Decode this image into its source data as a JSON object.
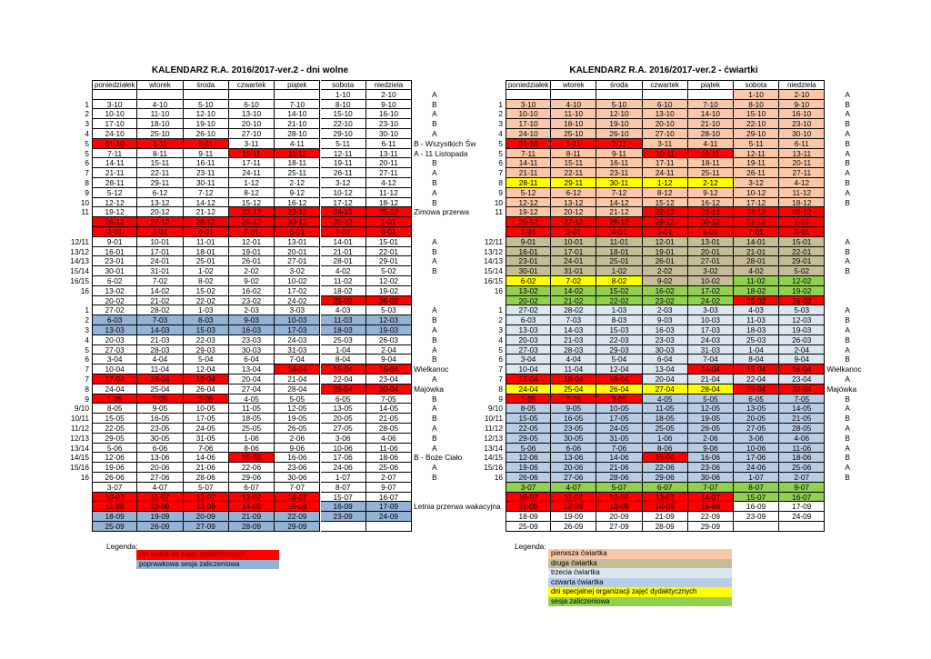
{
  "tables": [
    {
      "title": "KALENDARZ R.A. 2016/2017-ver.2 - dni wolne",
      "header": [
        "poniedziałek",
        "wtorek",
        "środa",
        "czwartek",
        "piątek",
        "sobota",
        "niedziela"
      ],
      "rows": [
        [
          null,
          null,
          null,
          null,
          null,
          null,
          "1-10",
          "2-10",
          "A"
        ],
        [
          "1",
          "3-10",
          "4-10",
          "5-10",
          "6-10",
          "7-10",
          "8-10",
          "9-10",
          "B"
        ],
        [
          "2",
          "10-10",
          "11-10",
          "12-10",
          "13-10",
          "14-10",
          "15-10",
          "16-10",
          "A"
        ],
        [
          "3",
          "17-10",
          "18-10",
          "19-10",
          "20-10",
          "21-10",
          "22-10",
          "23-10",
          "B"
        ],
        [
          "4",
          "24-10",
          "25-10",
          "26-10",
          "27-10",
          "28-10",
          "29-10",
          "30-10",
          "A"
        ],
        [
          "5",
          "31-10",
          "1-11",
          "2-11",
          "3-11",
          "4-11",
          "5-11",
          "6-11",
          "B - Wszystkich Św"
        ],
        [
          "5",
          "7-11",
          "8-11",
          "9-11",
          "10-11",
          "11-11",
          "12-11",
          "13-11",
          "A - 11 Listopada"
        ],
        [
          "6",
          "14-11",
          "15-11",
          "16-11",
          "17-11",
          "18-11",
          "19-11",
          "20-11",
          "B"
        ],
        [
          "7",
          "21-11",
          "22-11",
          "23-11",
          "24-11",
          "25-11",
          "26-11",
          "27-11",
          "A"
        ],
        [
          "8",
          "28-11",
          "29-11",
          "30-11",
          "1-12",
          "2-12",
          "3-12",
          "4-12",
          "B"
        ],
        [
          "9",
          "5-12",
          "6-12",
          "7-12",
          "8-12",
          "9-12",
          "10-12",
          "11-12",
          "A"
        ],
        [
          "10",
          "12-12",
          "13-12",
          "14-12",
          "15-12",
          "16-12",
          "17-12",
          "18-12",
          "B"
        ],
        [
          "11",
          "19-12",
          "20-12",
          "21-12",
          "22-12",
          "23-12",
          "24-12",
          "25-12",
          "Zimowa przerwa"
        ],
        [
          null,
          "26-12",
          "27-12",
          "28-12",
          "29-12",
          "30-12",
          "31-12",
          "1-01",
          null
        ],
        [
          null,
          "2-01",
          "3-01",
          "4-01",
          "5-01",
          "6-01",
          "7-01",
          "8-01",
          null
        ],
        [
          "12/11",
          "9-01",
          "10-01",
          "11-01",
          "12-01",
          "13-01",
          "14-01",
          "15-01",
          "A"
        ],
        [
          "13/12",
          "16-01",
          "17-01",
          "18-01",
          "19-01",
          "20-01",
          "21-01",
          "22-01",
          "B"
        ],
        [
          "14/13",
          "23-01",
          "24-01",
          "25-01",
          "26-01",
          "27-01",
          "28-01",
          "29-01",
          "A"
        ],
        [
          "15/14",
          "30-01",
          "31-01",
          "1-02",
          "2-02",
          "3-02",
          "4-02",
          "5-02",
          "B"
        ],
        [
          "16/15",
          "6-02",
          "7-02",
          "8-02",
          "9-02",
          "10-02",
          "11-02",
          "12-02",
          null
        ],
        [
          "16",
          "13-02",
          "14-02",
          "15-02",
          "16-02",
          "17-02",
          "18-02",
          "19-02",
          null
        ],
        [
          null,
          "20-02",
          "21-02",
          "22-02",
          "23-02",
          "24-02",
          "25-02",
          "26-02",
          null
        ],
        [
          "1",
          "27-02",
          "28-02",
          "1-03",
          "2-03",
          "3-03",
          "4-03",
          "5-03",
          "A"
        ],
        [
          "2",
          "6-03",
          "7-03",
          "8-03",
          "9-03",
          "10-03",
          "11-03",
          "12-03",
          "B"
        ],
        [
          "3",
          "13-03",
          "14-03",
          "15-03",
          "16-03",
          "17-03",
          "18-03",
          "19-03",
          "A"
        ],
        [
          "4",
          "20-03",
          "21-03",
          "22-03",
          "23-03",
          "24-03",
          "25-03",
          "26-03",
          "B"
        ],
        [
          "5",
          "27-03",
          "28-03",
          "29-03",
          "30-03",
          "31-03",
          "1-04",
          "2-04",
          "A"
        ],
        [
          "6",
          "3-04",
          "4-04",
          "5-04",
          "6-04",
          "7-04",
          "8-04",
          "9-04",
          "B"
        ],
        [
          "7",
          "10-04",
          "11-04",
          "12-04",
          "13-04",
          "14-04",
          "15-04",
          "16-04",
          "Wielkanoc"
        ],
        [
          "7",
          "17-04",
          "18-04",
          "19-04",
          "20-04",
          "21-04",
          "22-04",
          "23-04",
          "A"
        ],
        [
          "8",
          "24-04",
          "25-04",
          "26-04",
          "27-04",
          "28-04",
          "29-04",
          "30-04",
          "Majówka"
        ],
        [
          "9",
          "1-05",
          "2-05",
          "3-05",
          "4-05",
          "5-05",
          "6-05",
          "7-05",
          "B"
        ],
        [
          "9/10",
          "8-05",
          "9-05",
          "10-05",
          "11-05",
          "12-05",
          "13-05",
          "14-05",
          "A"
        ],
        [
          "10/11",
          "15-05",
          "16-05",
          "17-05",
          "18-05",
          "19-05",
          "20-05",
          "21-05",
          "B"
        ],
        [
          "11/12",
          "22-05",
          "23-05",
          "24-05",
          "25-05",
          "26-05",
          "27-05",
          "28-05",
          "A"
        ],
        [
          "12/13",
          "29-05",
          "30-05",
          "31-05",
          "1-06",
          "2-06",
          "3-06",
          "4-06",
          "B"
        ],
        [
          "13/14",
          "5-06",
          "6-06",
          "7-06",
          "8-06",
          "9-06",
          "10-06",
          "11-06",
          "A"
        ],
        [
          "14/15",
          "12-06",
          "13-06",
          "14-06",
          "15-06",
          "16-06",
          "17-06",
          "18-06",
          "B - Boże Ciało"
        ],
        [
          "15/16",
          "19-06",
          "20-06",
          "21-06",
          "22-06",
          "23-06",
          "24-06",
          "25-06",
          "A"
        ],
        [
          "16",
          "26-06",
          "27-06",
          "28-06",
          "29-06",
          "30-06",
          "1-07",
          "2-07",
          "B"
        ],
        [
          null,
          "3-07",
          "4-07",
          "5-07",
          "6-07",
          "7-07",
          "8-07",
          "9-07",
          null
        ],
        [
          null,
          "10-07",
          "11-07",
          "12-07",
          "13-07",
          "14-07",
          "15-07",
          "16-07",
          null
        ],
        [
          null,
          "11-09",
          "12-09",
          "13-09",
          "14-09",
          "15-09",
          "16-09",
          "17-09",
          "Letnia przerwa wakacyjna"
        ],
        [
          null,
          "18-09",
          "19-09",
          "20-09",
          "21-09",
          "22-09",
          "23-09",
          "24-09",
          null
        ],
        [
          null,
          "25-09",
          "26-09",
          "27-09",
          "28-09",
          "29-09",
          null,
          null,
          null
        ]
      ],
      "legend_title": "Legenda:",
      "legend": [
        {
          "label": "dni wolne od zajęć dydaktycznych",
          "color": "#ff0000"
        },
        {
          "label": "poprawkowa sesja zaliczeniowa",
          "color": "#95b3d7"
        }
      ]
    },
    {
      "title": "KALENDARZ R.A. 2016/2017-ver.2 - ćwiartki",
      "header": [
        "poniedziałek",
        "wtorek",
        "środa",
        "czwartek",
        "piątek",
        "sobota",
        "niedziela"
      ],
      "rows": [
        [
          null,
          null,
          null,
          null,
          null,
          null,
          "1-10",
          "2-10",
          "A"
        ],
        [
          "1",
          "3-10",
          "4-10",
          "5-10",
          "6-10",
          "7-10",
          "8-10",
          "9-10",
          "B"
        ],
        [
          "2",
          "10-10",
          "11-10",
          "12-10",
          "13-10",
          "14-10",
          "15-10",
          "16-10",
          "A"
        ],
        [
          "3",
          "17-10",
          "18-10",
          "19-10",
          "20-10",
          "21-10",
          "22-10",
          "23-10",
          "B"
        ],
        [
          "4",
          "24-10",
          "25-10",
          "26-10",
          "27-10",
          "28-10",
          "29-10",
          "30-10",
          "A"
        ],
        [
          "5",
          "31-10",
          "1-11",
          "2-11",
          "3-11",
          "4-11",
          "5-11",
          "6-11",
          "B"
        ],
        [
          "5",
          "7-11",
          "8-11",
          "9-11",
          "10-11",
          "11-11",
          "12-11",
          "13-11",
          "A"
        ],
        [
          "6",
          "14-11",
          "15-11",
          "16-11",
          "17-11",
          "18-11",
          "19-11",
          "20-11",
          "B"
        ],
        [
          "7",
          "21-11",
          "22-11",
          "23-11",
          "24-11",
          "25-11",
          "26-11",
          "27-11",
          "A"
        ],
        [
          "8",
          "28-11",
          "29-11",
          "30-11",
          "1-12",
          "2-12",
          "3-12",
          "4-12",
          "B"
        ],
        [
          "9",
          "5-12",
          "6-12",
          "7-12",
          "8-12",
          "9-12",
          "10-12",
          "11-12",
          "A"
        ],
        [
          "10",
          "12-12",
          "13-12",
          "14-12",
          "15-12",
          "16-12",
          "17-12",
          "18-12",
          "B"
        ],
        [
          "11",
          "19-12",
          "20-12",
          "21-12",
          "22-12",
          "23-12",
          "24-12",
          "25-12",
          null
        ],
        [
          null,
          "26-12",
          "27-12",
          "28-12",
          "29-12",
          "30-12",
          "31-12",
          "1-01",
          null
        ],
        [
          null,
          "2-01",
          "3-01",
          "4-01",
          "5-01",
          "6-01",
          "7-01",
          "8-01",
          null
        ],
        [
          "12/11",
          "9-01",
          "10-01",
          "11-01",
          "12-01",
          "13-01",
          "14-01",
          "15-01",
          "A"
        ],
        [
          "13/12",
          "16-01",
          "17-01",
          "18-01",
          "19-01",
          "20-01",
          "21-01",
          "22-01",
          "B"
        ],
        [
          "14/13",
          "23-01",
          "24-01",
          "25-01",
          "26-01",
          "27-01",
          "28-01",
          "29-01",
          "A"
        ],
        [
          "15/14",
          "30-01",
          "31-01",
          "1-02",
          "2-02",
          "3-02",
          "4-02",
          "5-02",
          "B"
        ],
        [
          "16/15",
          "6-02",
          "7-02",
          "8-02",
          "9-02",
          "10-02",
          "11-02",
          "12-02",
          null
        ],
        [
          "16",
          "13-02",
          "14-02",
          "15-02",
          "16-02",
          "17-02",
          "18-02",
          "19-02",
          null
        ],
        [
          null,
          "20-02",
          "21-02",
          "22-02",
          "23-02",
          "24-02",
          "25-02",
          "26-02",
          null
        ],
        [
          "1",
          "27-02",
          "28-02",
          "1-03",
          "2-03",
          "3-03",
          "4-03",
          "5-03",
          "A"
        ],
        [
          "2",
          "6-03",
          "7-03",
          "8-03",
          "9-03",
          "10-03",
          "11-03",
          "12-03",
          "B"
        ],
        [
          "3",
          "13-03",
          "14-03",
          "15-03",
          "16-03",
          "17-03",
          "18-03",
          "19-03",
          "A"
        ],
        [
          "4",
          "20-03",
          "21-03",
          "22-03",
          "23-03",
          "24-03",
          "25-03",
          "26-03",
          "B"
        ],
        [
          "5",
          "27-03",
          "28-03",
          "29-03",
          "30-03",
          "31-03",
          "1-04",
          "2-04",
          "A"
        ],
        [
          "6",
          "3-04",
          "4-04",
          "5-04",
          "6-04",
          "7-04",
          "8-04",
          "9-04",
          "B"
        ],
        [
          "7",
          "10-04",
          "11-04",
          "12-04",
          "13-04",
          "14-04",
          "15-04",
          "16-04",
          "Wielkanoc"
        ],
        [
          "7",
          "17-04",
          "18-04",
          "19-04",
          "20-04",
          "21-04",
          "22-04",
          "23-04",
          "A"
        ],
        [
          "8",
          "24-04",
          "25-04",
          "26-04",
          "27-04",
          "28-04",
          "29-04",
          "30-04",
          "Majówka"
        ],
        [
          "9",
          "1-05",
          "2-05",
          "3-05",
          "4-05",
          "5-05",
          "6-05",
          "7-05",
          "B"
        ],
        [
          "9/10",
          "8-05",
          "9-05",
          "10-05",
          "11-05",
          "12-05",
          "13-05",
          "14-05",
          "A"
        ],
        [
          "10/11",
          "15-05",
          "16-05",
          "17-05",
          "18-05",
          "19-05",
          "20-05",
          "21-05",
          "B"
        ],
        [
          "11/12",
          "22-05",
          "23-05",
          "24-05",
          "25-05",
          "26-05",
          "27-05",
          "28-05",
          "A"
        ],
        [
          "12/13",
          "29-05",
          "30-05",
          "31-05",
          "1-06",
          "2-06",
          "3-06",
          "4-06",
          "B"
        ],
        [
          "13/14",
          "5-06",
          "6-06",
          "7-06",
          "8-06",
          "9-06",
          "10-06",
          "11-06",
          "A"
        ],
        [
          "14/15",
          "12-06",
          "13-06",
          "14-06",
          "15-06",
          "16-06",
          "17-06",
          "18-06",
          "B"
        ],
        [
          "15/16",
          "19-06",
          "20-06",
          "21-06",
          "22-06",
          "23-06",
          "24-06",
          "25-06",
          "A"
        ],
        [
          "16",
          "26-06",
          "27-06",
          "28-06",
          "29-06",
          "30-06",
          "1-07",
          "2-07",
          "B"
        ],
        [
          null,
          "3-07",
          "4-07",
          "5-07",
          "6-07",
          "7-07",
          "8-07",
          "9-07",
          null
        ],
        [
          null,
          "10-07",
          "11-07",
          "12-07",
          "13-07",
          "14-07",
          "15-07",
          "16-07",
          null
        ],
        [
          null,
          "11-09",
          "12-09",
          "13-09",
          "14-09",
          "15-09",
          "16-09",
          "17-09",
          null
        ],
        [
          null,
          "18-09",
          "19-09",
          "20-09",
          "21-09",
          "22-09",
          "23-09",
          "24-09",
          null
        ],
        [
          null,
          "25-09",
          "26-09",
          "27-09",
          "28-09",
          "29-09",
          null,
          null,
          null
        ]
      ],
      "legend_title": "Legenda:",
      "legend": [
        {
          "label": "pierwsza ćwiartka",
          "color": "#fac8a8"
        },
        {
          "label": "druga ćwiartka",
          "color": "#c4bd97"
        },
        {
          "label": "trzecia ćwiartka",
          "color": "#dce6f1"
        },
        {
          "label": "czwarta ćwiartka",
          "color": "#b8cce4"
        },
        {
          "label": "dni specjalnej organizacji zajęć dydaktycznych",
          "color": "#ffff00"
        },
        {
          "label": "sesja zaliczeniowa",
          "color": "#92d050"
        }
      ]
    }
  ]
}
